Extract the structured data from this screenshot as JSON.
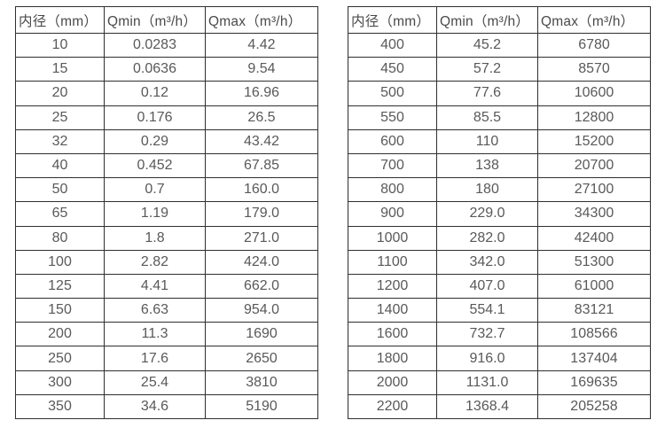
{
  "page": {
    "background": "#ffffff",
    "border_color": "#2f2f2f",
    "header_text_color": "#4a4a4a",
    "cell_text_color": "#595959"
  },
  "tables": [
    {
      "name": "flow-rate-table-small-diameters",
      "headers": [
        "内径（mm）",
        "Qmin（m³/h）",
        "Qmax（m³/h）"
      ],
      "rows": [
        [
          "10",
          "0.0283",
          "4.42"
        ],
        [
          "15",
          "0.0636",
          "9.54"
        ],
        [
          "20",
          "0.12",
          "16.96"
        ],
        [
          "25",
          "0.176",
          "26.5"
        ],
        [
          "32",
          "0.29",
          "43.42"
        ],
        [
          "40",
          "0.452",
          "67.85"
        ],
        [
          "50",
          "0.7",
          "160.0"
        ],
        [
          "65",
          "1.19",
          "179.0"
        ],
        [
          "80",
          "1.8",
          "271.0"
        ],
        [
          "100",
          "2.82",
          "424.0"
        ],
        [
          "125",
          "4.41",
          "662.0"
        ],
        [
          "150",
          "6.63",
          "954.0"
        ],
        [
          "200",
          "11.3",
          "1690"
        ],
        [
          "250",
          "17.6",
          "2650"
        ],
        [
          "300",
          "25.4",
          "3810"
        ],
        [
          "350",
          "34.6",
          "5190"
        ]
      ]
    },
    {
      "name": "flow-rate-table-large-diameters",
      "headers": [
        "内径（mm）",
        "Qmin（m³/h）",
        "Qmax（m³/h）"
      ],
      "rows": [
        [
          "400",
          "45.2",
          "6780"
        ],
        [
          "450",
          "57.2",
          "8570"
        ],
        [
          "500",
          "77.6",
          "10600"
        ],
        [
          "550",
          "85.5",
          "12800"
        ],
        [
          "600",
          "110",
          "15200"
        ],
        [
          "700",
          "138",
          "20700"
        ],
        [
          "800",
          "180",
          "27100"
        ],
        [
          "900",
          "229.0",
          "34300"
        ],
        [
          "1000",
          "282.0",
          "42400"
        ],
        [
          "1100",
          "342.0",
          "51300"
        ],
        [
          "1200",
          "407.0",
          "61000"
        ],
        [
          "1400",
          "554.1",
          "83121"
        ],
        [
          "1600",
          "732.7",
          "108566"
        ],
        [
          "1800",
          "916.0",
          "137404"
        ],
        [
          "2000",
          "1131.0",
          "169635"
        ],
        [
          "2200",
          "1368.4",
          "205258"
        ]
      ]
    }
  ]
}
